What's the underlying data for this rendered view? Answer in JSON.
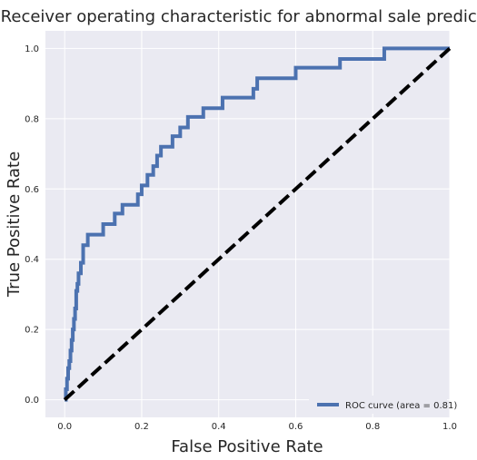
{
  "chart_data": {
    "type": "line",
    "title": "Receiver operating characteristic for abnormal sale prediction",
    "xlabel": "False Positive Rate",
    "ylabel": "True Positive Rate",
    "xlim": [
      -0.05,
      1.0
    ],
    "ylim": [
      -0.05,
      1.05
    ],
    "xticks": [
      "0.0",
      "0.2",
      "0.4",
      "0.6",
      "0.8",
      "1.0"
    ],
    "yticks": [
      "0.0",
      "0.2",
      "0.4",
      "0.6",
      "0.8",
      "1.0"
    ],
    "grid": true,
    "legend_position": "lower-right",
    "series": [
      {
        "name": "ROC curve (area = 0.81)",
        "color": "#4c72b0",
        "x": [
          0.0,
          0.003,
          0.003,
          0.006,
          0.006,
          0.009,
          0.009,
          0.012,
          0.012,
          0.015,
          0.015,
          0.018,
          0.018,
          0.021,
          0.021,
          0.024,
          0.024,
          0.027,
          0.027,
          0.03,
          0.03,
          0.033,
          0.033,
          0.036,
          0.036,
          0.042,
          0.042,
          0.048,
          0.048,
          0.06,
          0.06,
          0.1,
          0.1,
          0.13,
          0.13,
          0.15,
          0.15,
          0.19,
          0.19,
          0.2,
          0.2,
          0.215,
          0.215,
          0.23,
          0.23,
          0.24,
          0.24,
          0.25,
          0.25,
          0.28,
          0.28,
          0.3,
          0.3,
          0.32,
          0.32,
          0.36,
          0.36,
          0.41,
          0.41,
          0.49,
          0.49,
          0.5,
          0.5,
          0.6,
          0.6,
          0.715,
          0.715,
          0.83,
          0.83,
          1.0
        ],
        "y": [
          0.0,
          0.0,
          0.03,
          0.03,
          0.06,
          0.06,
          0.09,
          0.09,
          0.11,
          0.11,
          0.14,
          0.14,
          0.17,
          0.17,
          0.2,
          0.2,
          0.23,
          0.23,
          0.26,
          0.26,
          0.31,
          0.31,
          0.33,
          0.33,
          0.36,
          0.36,
          0.39,
          0.39,
          0.44,
          0.44,
          0.47,
          0.47,
          0.5,
          0.5,
          0.53,
          0.53,
          0.555,
          0.555,
          0.585,
          0.585,
          0.61,
          0.61,
          0.64,
          0.64,
          0.665,
          0.665,
          0.695,
          0.695,
          0.72,
          0.72,
          0.75,
          0.75,
          0.775,
          0.775,
          0.805,
          0.805,
          0.83,
          0.83,
          0.86,
          0.86,
          0.885,
          0.885,
          0.915,
          0.915,
          0.945,
          0.945,
          0.97,
          0.97,
          1.0,
          1.0
        ]
      },
      {
        "name": "",
        "color": "#000000",
        "dashed": true,
        "x": [
          0.0,
          1.0
        ],
        "y": [
          0.0,
          1.0
        ]
      }
    ]
  }
}
